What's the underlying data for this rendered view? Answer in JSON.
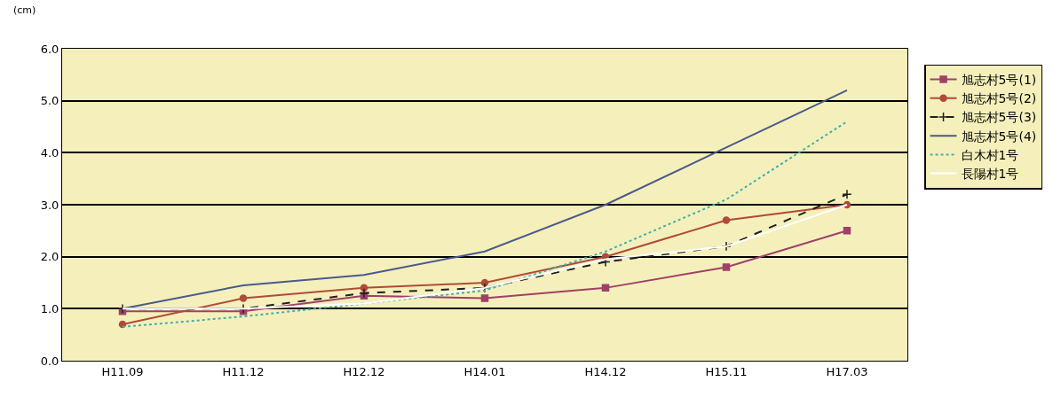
{
  "chart_data": {
    "type": "line",
    "ylabel": "(cm)",
    "categories": [
      "H11.09",
      "H11.12",
      "H12.12",
      "H14.01",
      "H14.12",
      "H15.11",
      "H17.03"
    ],
    "series": [
      {
        "name": "旭志村5号(1)",
        "color": "#a0406a",
        "marker": "square",
        "line_style": "solid",
        "values": [
          0.95,
          0.95,
          1.25,
          1.2,
          1.4,
          1.8,
          2.5
        ]
      },
      {
        "name": "旭志村5号(2)",
        "color": "#b04a3a",
        "marker": "circle",
        "line_style": "solid",
        "values": [
          0.7,
          1.2,
          1.4,
          1.5,
          2.0,
          2.7,
          3.0
        ]
      },
      {
        "name": "旭志村5号(3)",
        "color": "#202020",
        "marker": "cross",
        "line_style": "dashed",
        "values": [
          1.0,
          1.0,
          1.3,
          1.4,
          1.9,
          2.2,
          3.2
        ]
      },
      {
        "name": "旭志村5号(4)",
        "color": "#4a5a8a",
        "marker": "none",
        "line_style": "solid",
        "values": [
          1.0,
          1.45,
          1.65,
          2.1,
          3.0,
          4.1,
          5.2
        ]
      },
      {
        "name": "白木村1号",
        "color": "#40b0b0",
        "marker": "none",
        "line_style": "dotted",
        "values": [
          0.65,
          0.85,
          1.1,
          1.35,
          2.1,
          3.1,
          4.6
        ]
      },
      {
        "name": "長陽村1号",
        "color": "#ffffff",
        "marker": "none",
        "line_style": "solid",
        "values": [
          1.0,
          1.0,
          1.1,
          1.4,
          1.95,
          2.2,
          3.0
        ]
      }
    ],
    "ylim": [
      0,
      6
    ],
    "yticks": [
      {
        "value": 0,
        "label": "0.0"
      },
      {
        "value": 1,
        "label": "1.0"
      },
      {
        "value": 2,
        "label": "2.0"
      },
      {
        "value": 3,
        "label": "3.0"
      },
      {
        "value": 4,
        "label": "4.0"
      },
      {
        "value": 5,
        "label": "5.0"
      },
      {
        "value": 6,
        "label": "6.0"
      }
    ],
    "grid": "y",
    "legend": "right"
  }
}
